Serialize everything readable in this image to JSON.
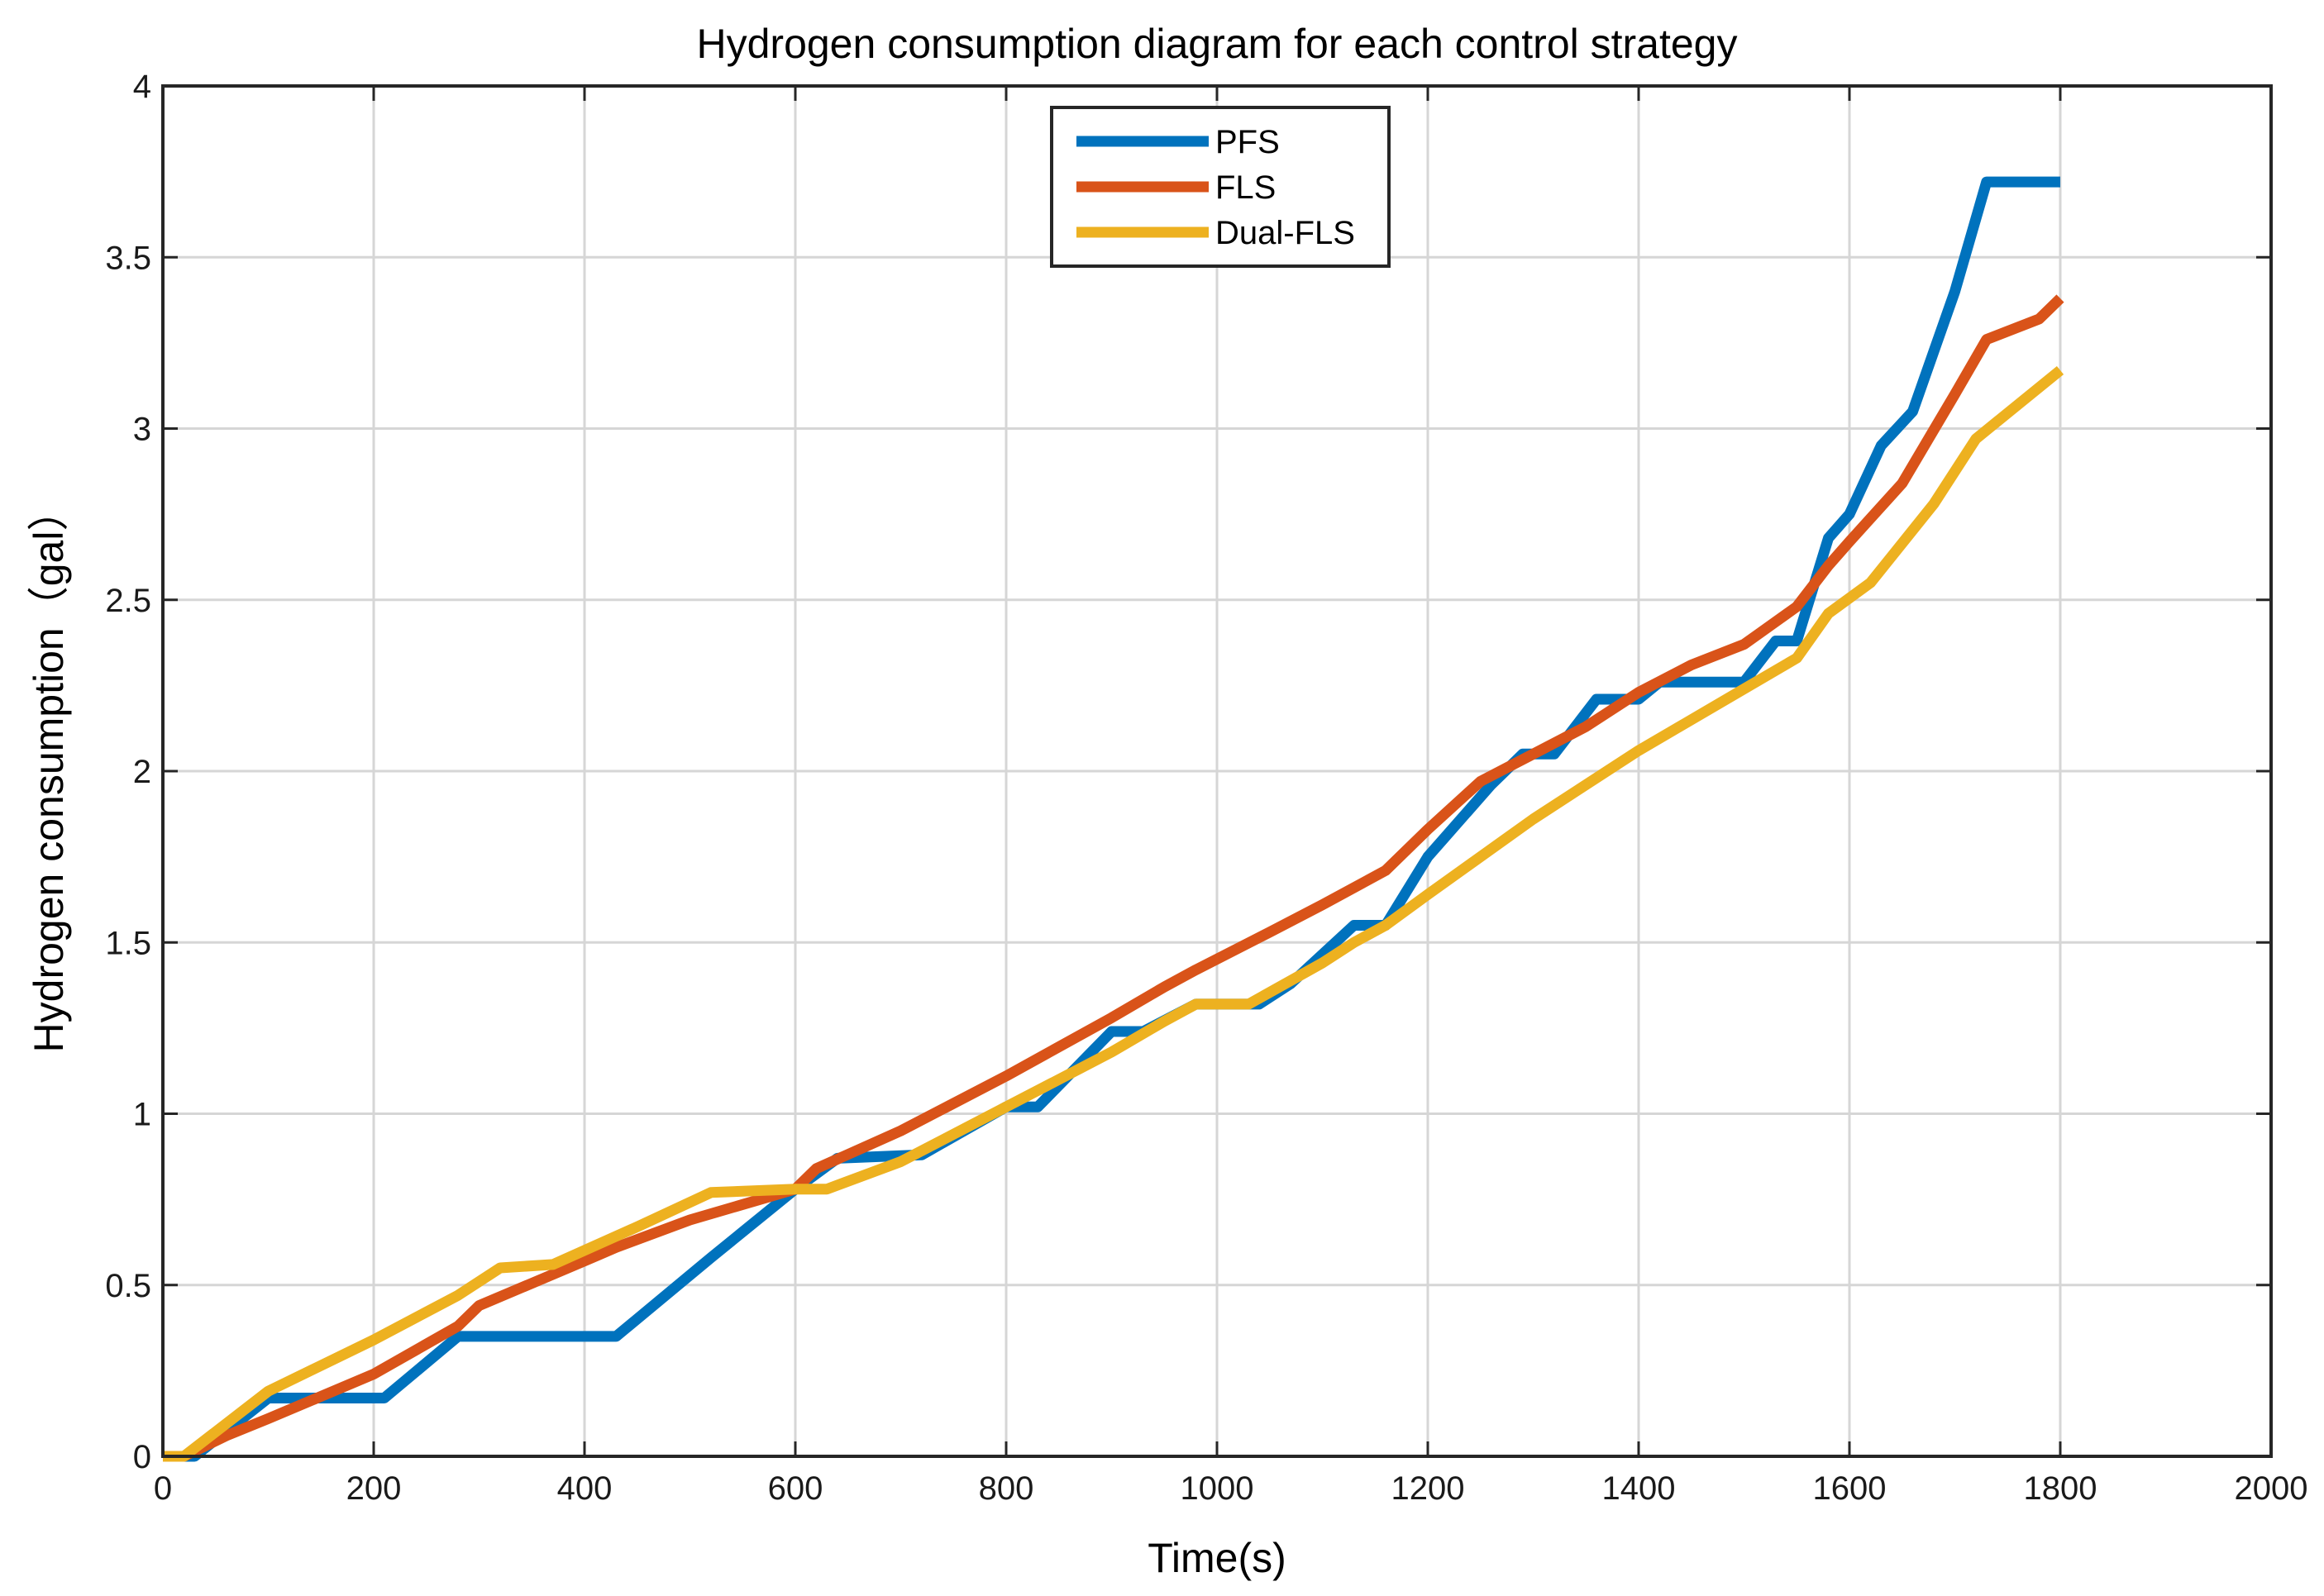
{
  "chart_data": {
    "type": "line",
    "title": "Hydrogen consumption diagram for each control strategy",
    "xlabel": "Time(s)",
    "ylabel": "Hydrogen consumption（gal）",
    "xlim": [
      0,
      2000
    ],
    "ylim": [
      0,
      4
    ],
    "xticks": [
      0,
      200,
      400,
      600,
      800,
      1000,
      1200,
      1400,
      1600,
      1800,
      2000
    ],
    "yticks": [
      0,
      0.5,
      1,
      1.5,
      2,
      2.5,
      3,
      3.5,
      4
    ],
    "xtick_labels": [
      "0",
      "200",
      "400",
      "600",
      "800",
      "1000",
      "1200",
      "1400",
      "1600",
      "1800",
      "2000"
    ],
    "ytick_labels": [
      "0",
      "0.5",
      "1",
      "1.5",
      "2",
      "2.5",
      "3",
      "3.5",
      "4"
    ],
    "grid": true,
    "legend_position": "top-center",
    "series": [
      {
        "name": "PFS",
        "color": "#0072BD",
        "points": [
          [
            0,
            0
          ],
          [
            30,
            0
          ],
          [
            100,
            0.17
          ],
          [
            210,
            0.17
          ],
          [
            280,
            0.35
          ],
          [
            430,
            0.35
          ],
          [
            520,
            0.58
          ],
          [
            600,
            0.78
          ],
          [
            640,
            0.87
          ],
          [
            720,
            0.88
          ],
          [
            800,
            1.02
          ],
          [
            830,
            1.02
          ],
          [
            900,
            1.24
          ],
          [
            930,
            1.24
          ],
          [
            980,
            1.32
          ],
          [
            1040,
            1.32
          ],
          [
            1070,
            1.38
          ],
          [
            1130,
            1.55
          ],
          [
            1160,
            1.55
          ],
          [
            1200,
            1.75
          ],
          [
            1260,
            1.96
          ],
          [
            1290,
            2.05
          ],
          [
            1320,
            2.05
          ],
          [
            1360,
            2.21
          ],
          [
            1400,
            2.21
          ],
          [
            1420,
            2.26
          ],
          [
            1500,
            2.26
          ],
          [
            1530,
            2.38
          ],
          [
            1550,
            2.38
          ],
          [
            1580,
            2.68
          ],
          [
            1600,
            2.75
          ],
          [
            1630,
            2.95
          ],
          [
            1660,
            3.05
          ],
          [
            1700,
            3.4
          ],
          [
            1730,
            3.72
          ],
          [
            1800,
            3.72
          ]
        ]
      },
      {
        "name": "FLS",
        "color": "#D95319",
        "points": [
          [
            0,
            0
          ],
          [
            20,
            0
          ],
          [
            60,
            0.06
          ],
          [
            100,
            0.11
          ],
          [
            200,
            0.24
          ],
          [
            280,
            0.38
          ],
          [
            300,
            0.44
          ],
          [
            400,
            0.57
          ],
          [
            430,
            0.61
          ],
          [
            500,
            0.69
          ],
          [
            600,
            0.78
          ],
          [
            620,
            0.84
          ],
          [
            700,
            0.95
          ],
          [
            800,
            1.11
          ],
          [
            900,
            1.28
          ],
          [
            950,
            1.37
          ],
          [
            980,
            1.42
          ],
          [
            1050,
            1.53
          ],
          [
            1100,
            1.61
          ],
          [
            1160,
            1.71
          ],
          [
            1200,
            1.83
          ],
          [
            1250,
            1.97
          ],
          [
            1300,
            2.05
          ],
          [
            1350,
            2.13
          ],
          [
            1400,
            2.23
          ],
          [
            1450,
            2.31
          ],
          [
            1500,
            2.37
          ],
          [
            1550,
            2.48
          ],
          [
            1580,
            2.6
          ],
          [
            1600,
            2.67
          ],
          [
            1650,
            2.84
          ],
          [
            1700,
            3.1
          ],
          [
            1730,
            3.26
          ],
          [
            1780,
            3.32
          ],
          [
            1800,
            3.38
          ]
        ]
      },
      {
        "name": "Dual-FLS",
        "color": "#EDB120",
        "points": [
          [
            0,
            0
          ],
          [
            20,
            0
          ],
          [
            100,
            0.19
          ],
          [
            200,
            0.34
          ],
          [
            280,
            0.47
          ],
          [
            320,
            0.55
          ],
          [
            370,
            0.56
          ],
          [
            450,
            0.67
          ],
          [
            520,
            0.77
          ],
          [
            600,
            0.78
          ],
          [
            630,
            0.78
          ],
          [
            700,
            0.86
          ],
          [
            800,
            1.02
          ],
          [
            900,
            1.18
          ],
          [
            950,
            1.27
          ],
          [
            980,
            1.32
          ],
          [
            1030,
            1.32
          ],
          [
            1100,
            1.44
          ],
          [
            1130,
            1.5
          ],
          [
            1160,
            1.55
          ],
          [
            1200,
            1.64
          ],
          [
            1300,
            1.86
          ],
          [
            1400,
            2.06
          ],
          [
            1500,
            2.24
          ],
          [
            1550,
            2.33
          ],
          [
            1580,
            2.46
          ],
          [
            1620,
            2.55
          ],
          [
            1680,
            2.78
          ],
          [
            1720,
            2.97
          ],
          [
            1800,
            3.17
          ]
        ]
      }
    ]
  }
}
